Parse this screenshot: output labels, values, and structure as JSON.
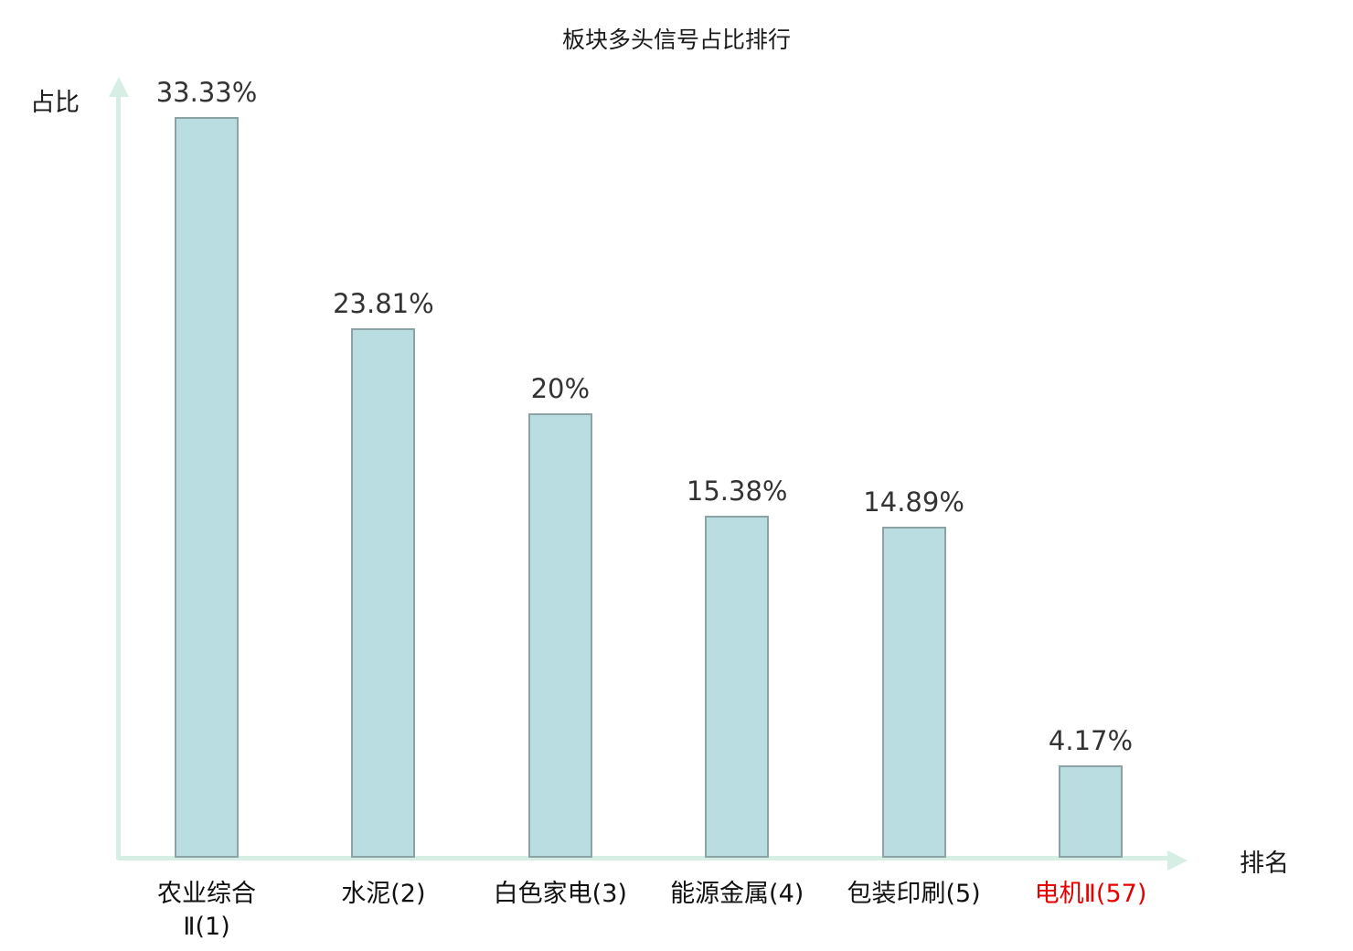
{
  "chart_data": {
    "type": "bar",
    "title": "板块多头信号占比排行",
    "xlabel": "排名",
    "ylabel": "占比",
    "categories": [
      "农业综合\nⅡ(1)",
      "水泥(2)",
      "白色家电(3)",
      "能源金属(4)",
      "包装印刷(5)",
      "电机Ⅱ(57)"
    ],
    "values": [
      33.33,
      23.81,
      20,
      15.38,
      14.89,
      4.17
    ],
    "value_labels": [
      "33.33%",
      "23.81%",
      "20%",
      "15.38%",
      "14.89%",
      "4.17%"
    ],
    "highlight_index": 5,
    "ylim": [
      0,
      35
    ],
    "grid": false,
    "legend": false,
    "colors": {
      "bar_fill": "#b9dde1",
      "bar_border": "#8ba3a5",
      "axis": "#d7eee4",
      "value_label": "#333333",
      "category_label": "#111111",
      "highlight_label": "#e60000",
      "title": "#1a1a1a"
    }
  }
}
